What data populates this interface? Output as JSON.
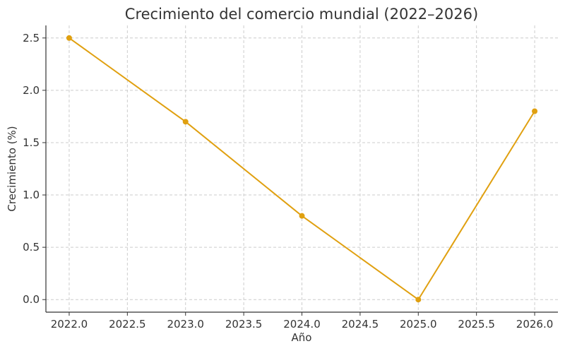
{
  "chart_data": {
    "type": "line",
    "title": "Crecimiento del comercio mundial (2022–2026)",
    "xlabel": "Año",
    "ylabel": "Crecimiento (%)",
    "x": [
      2022,
      2023,
      2024,
      2025,
      2026
    ],
    "series": [
      {
        "values": [
          2.5,
          1.7,
          0.8,
          0.0,
          1.8
        ],
        "color": "#e0a010"
      }
    ],
    "xlim": [
      2021.8,
      2026.2
    ],
    "ylim": [
      -0.12,
      2.62
    ],
    "xticks": [
      2022.0,
      2022.5,
      2023.0,
      2023.5,
      2024.0,
      2024.5,
      2025.0,
      2025.5,
      2026.0
    ],
    "xtick_labels": [
      "2022.0",
      "2022.5",
      "2023.0",
      "2023.5",
      "2024.0",
      "2024.5",
      "2025.0",
      "2025.5",
      "2026.0"
    ],
    "yticks": [
      0.0,
      0.5,
      1.0,
      1.5,
      2.0,
      2.5
    ],
    "ytick_labels": [
      "0.0",
      "0.5",
      "1.0",
      "1.5",
      "2.0",
      "2.5"
    ],
    "grid": true,
    "legend": "none"
  }
}
